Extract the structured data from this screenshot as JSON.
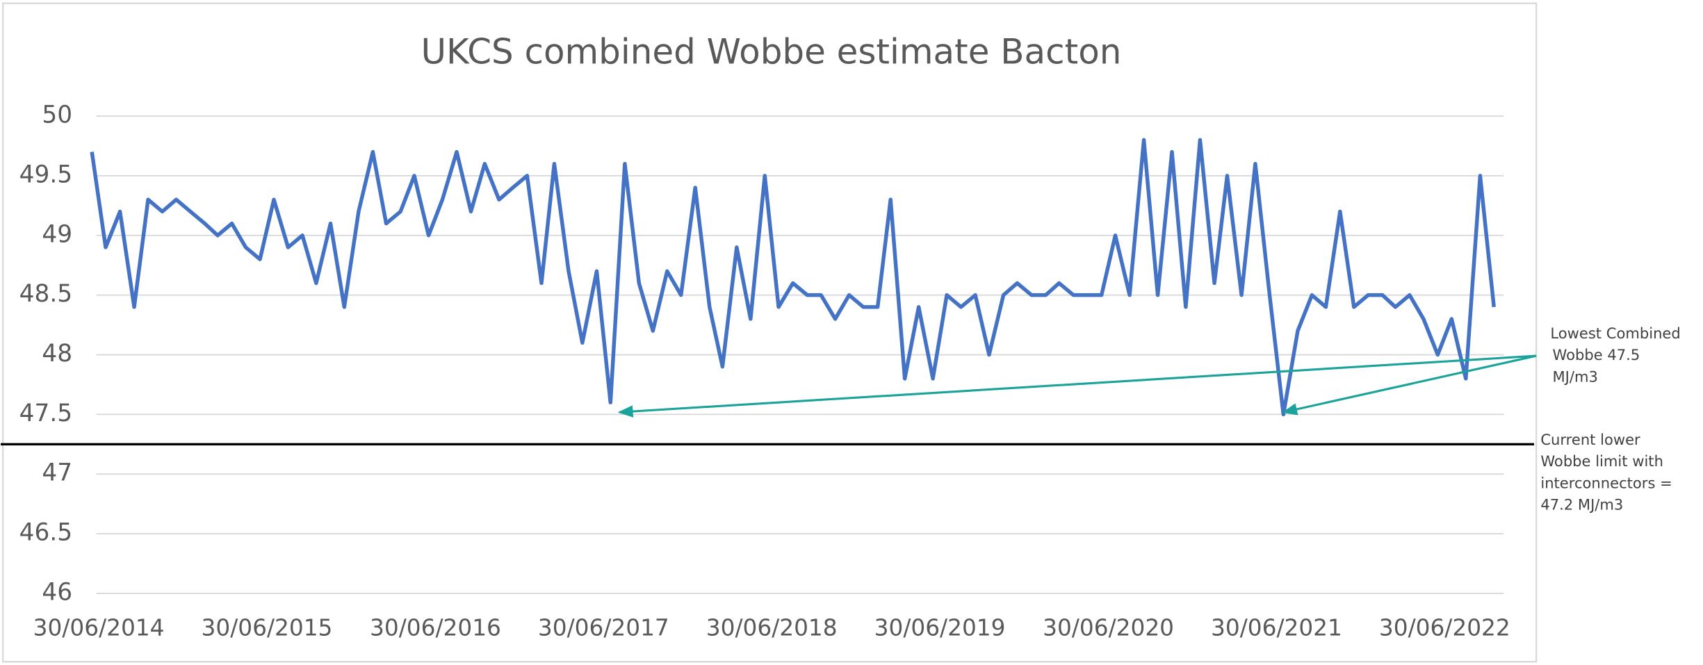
{
  "chart_data": {
    "type": "line",
    "title": "UKCS combined Wobbe estimate Bacton",
    "x": [
      "15/06/2014",
      "15/07/2014",
      "15/08/2014",
      "15/09/2014",
      "15/10/2014",
      "15/11/2014",
      "15/12/2014",
      "15/01/2015",
      "15/02/2015",
      "15/03/2015",
      "15/04/2015",
      "15/05/2015",
      "15/06/2015",
      "15/07/2015",
      "15/08/2015",
      "15/09/2015",
      "15/10/2015",
      "15/11/2015",
      "15/12/2015",
      "15/01/2016",
      "15/02/2016",
      "15/03/2016",
      "15/04/2016",
      "15/05/2016",
      "15/06/2016",
      "15/07/2016",
      "15/08/2016",
      "15/09/2016",
      "15/10/2016",
      "15/11/2016",
      "15/12/2016",
      "15/01/2017",
      "15/02/2017",
      "15/03/2017",
      "15/04/2017",
      "15/05/2017",
      "15/06/2017",
      "15/07/2017",
      "15/08/2017",
      "15/09/2017",
      "15/10/2017",
      "15/11/2017",
      "15/12/2017",
      "15/01/2018",
      "15/02/2018",
      "15/03/2018",
      "15/04/2018",
      "15/05/2018",
      "15/06/2018",
      "15/07/2018",
      "15/08/2018",
      "15/09/2018",
      "15/10/2018",
      "15/11/2018",
      "15/12/2018",
      "15/01/2019",
      "15/02/2019",
      "15/03/2019",
      "15/04/2019",
      "15/05/2019",
      "15/06/2019",
      "15/07/2019",
      "15/08/2019",
      "15/09/2019",
      "15/10/2019",
      "15/11/2019",
      "15/12/2019",
      "15/01/2020",
      "15/02/2020",
      "15/03/2020",
      "15/04/2020",
      "15/05/2020",
      "15/06/2020",
      "15/07/2020",
      "15/08/2020",
      "15/09/2020",
      "15/10/2020",
      "15/11/2020",
      "15/12/2020",
      "15/01/2021",
      "15/02/2021",
      "15/03/2021",
      "15/04/2021",
      "15/05/2021",
      "15/06/2021",
      "15/07/2021",
      "15/08/2021",
      "15/09/2021",
      "15/10/2021",
      "15/11/2021",
      "15/12/2021",
      "15/01/2022",
      "15/02/2022",
      "15/03/2022",
      "15/04/2022",
      "15/05/2022",
      "15/06/2022",
      "15/07/2022",
      "15/08/2022",
      "15/09/2022",
      "15/10/2022"
    ],
    "series": [
      {
        "color": "#4472c4",
        "values": [
          49.7,
          48.9,
          49.2,
          48.4,
          49.3,
          49.2,
          49.3,
          49.2,
          49.1,
          49.0,
          49.1,
          48.9,
          48.8,
          49.3,
          48.9,
          49.0,
          48.6,
          49.1,
          48.4,
          49.2,
          49.7,
          49.1,
          49.2,
          49.5,
          49.0,
          49.3,
          49.7,
          49.2,
          49.6,
          49.3,
          49.4,
          49.5,
          48.6,
          49.6,
          48.7,
          48.1,
          48.7,
          47.6,
          49.6,
          48.6,
          48.2,
          48.7,
          48.5,
          49.4,
          48.4,
          47.9,
          48.9,
          48.3,
          49.5,
          48.4,
          48.6,
          48.5,
          48.5,
          48.3,
          48.5,
          48.4,
          48.4,
          49.3,
          47.8,
          48.4,
          47.8,
          48.5,
          48.4,
          48.5,
          48.0,
          48.5,
          48.6,
          48.5,
          48.5,
          48.6,
          48.5,
          48.5,
          48.5,
          49.0,
          48.5,
          49.8,
          48.5,
          49.7,
          48.4,
          49.8,
          48.6,
          49.5,
          48.5,
          49.6,
          48.5,
          47.5,
          48.2,
          48.5,
          48.4,
          49.2,
          48.4,
          48.5,
          48.5,
          48.4,
          48.5,
          48.3,
          48.0,
          48.3,
          47.8,
          49.5,
          48.4
        ]
      }
    ],
    "xlim": [
      "15/06/2014",
      "15/10/2022"
    ],
    "xticks": [
      "30/06/2014",
      "30/06/2015",
      "30/06/2016",
      "30/06/2017",
      "30/06/2018",
      "30/06/2019",
      "30/06/2020",
      "30/06/2021",
      "30/06/2022"
    ],
    "ylim": [
      46,
      50
    ],
    "yticks": [
      46,
      46.5,
      47,
      47.5,
      48,
      48.5,
      49,
      49.5,
      50
    ],
    "grid": true,
    "limit_line": 47.25,
    "annotations": [
      {
        "lines": [
          "Lowest Combined",
          "Wobbe  47.5",
          "MJ/m3"
        ]
      },
      {
        "lines": [
          "Current lower",
          "Wobbe limit with",
          "interconnectors =",
          "47.2 MJ/m3"
        ]
      }
    ]
  }
}
